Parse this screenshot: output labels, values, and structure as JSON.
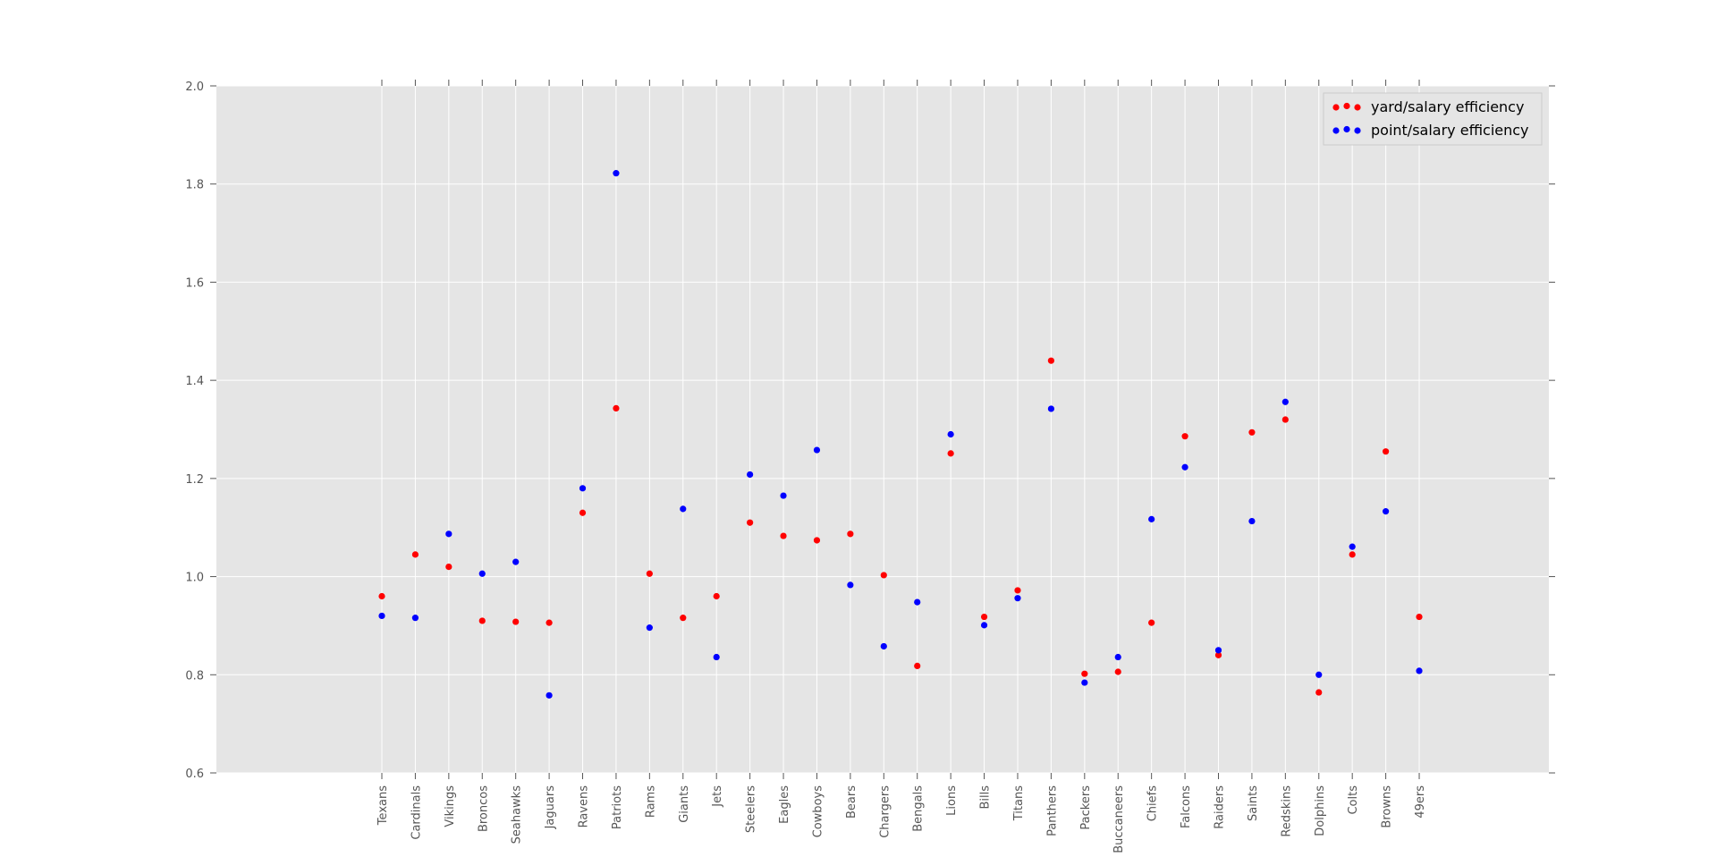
{
  "chart_data": {
    "type": "scatter",
    "title": "",
    "xlabel": "",
    "ylabel": "",
    "ylim": [
      0.6,
      2.0
    ],
    "yticks": [
      "0.6",
      "0.8",
      "1.0",
      "1.2",
      "1.4",
      "1.6",
      "1.8",
      "2.0"
    ],
    "grid": true,
    "legend_position": "top-right",
    "categories": [
      "Texans",
      "Cardinals",
      "Vikings",
      "Broncos",
      "Seahawks",
      "Jaguars",
      "Ravens",
      "Patriots",
      "Rams",
      "Giants",
      "Jets",
      "Steelers",
      "Eagles",
      "Cowboys",
      "Bears",
      "Chargers",
      "Bengals",
      "Lions",
      "Bills",
      "Titans",
      "Panthers",
      "Packers",
      "Buccaneers",
      "Chiefs",
      "Falcons",
      "Raiders",
      "Saints",
      "Redskins",
      "Dolphins",
      "Colts",
      "Browns",
      "49ers"
    ],
    "series": [
      {
        "name": "yard/salary efficiency",
        "color": "#ff0000",
        "values": [
          0.96,
          1.045,
          1.02,
          0.91,
          0.908,
          0.906,
          1.13,
          1.343,
          1.006,
          0.916,
          0.96,
          1.11,
          1.083,
          1.074,
          1.087,
          1.003,
          0.818,
          1.251,
          0.918,
          0.972,
          1.44,
          0.802,
          0.806,
          0.906,
          1.286,
          0.84,
          1.294,
          1.32,
          0.764,
          1.045,
          1.255,
          0.918
        ]
      },
      {
        "name": "point/salary efficiency",
        "color": "#0000ff",
        "values": [
          0.92,
          0.916,
          1.087,
          1.006,
          1.03,
          0.758,
          1.18,
          1.822,
          0.896,
          1.138,
          0.836,
          1.208,
          1.165,
          1.258,
          0.983,
          0.858,
          0.948,
          1.29,
          0.901,
          0.956,
          1.342,
          0.784,
          0.836,
          1.117,
          1.223,
          0.85,
          1.113,
          1.356,
          0.8,
          1.061,
          1.133,
          0.808
        ]
      }
    ]
  }
}
